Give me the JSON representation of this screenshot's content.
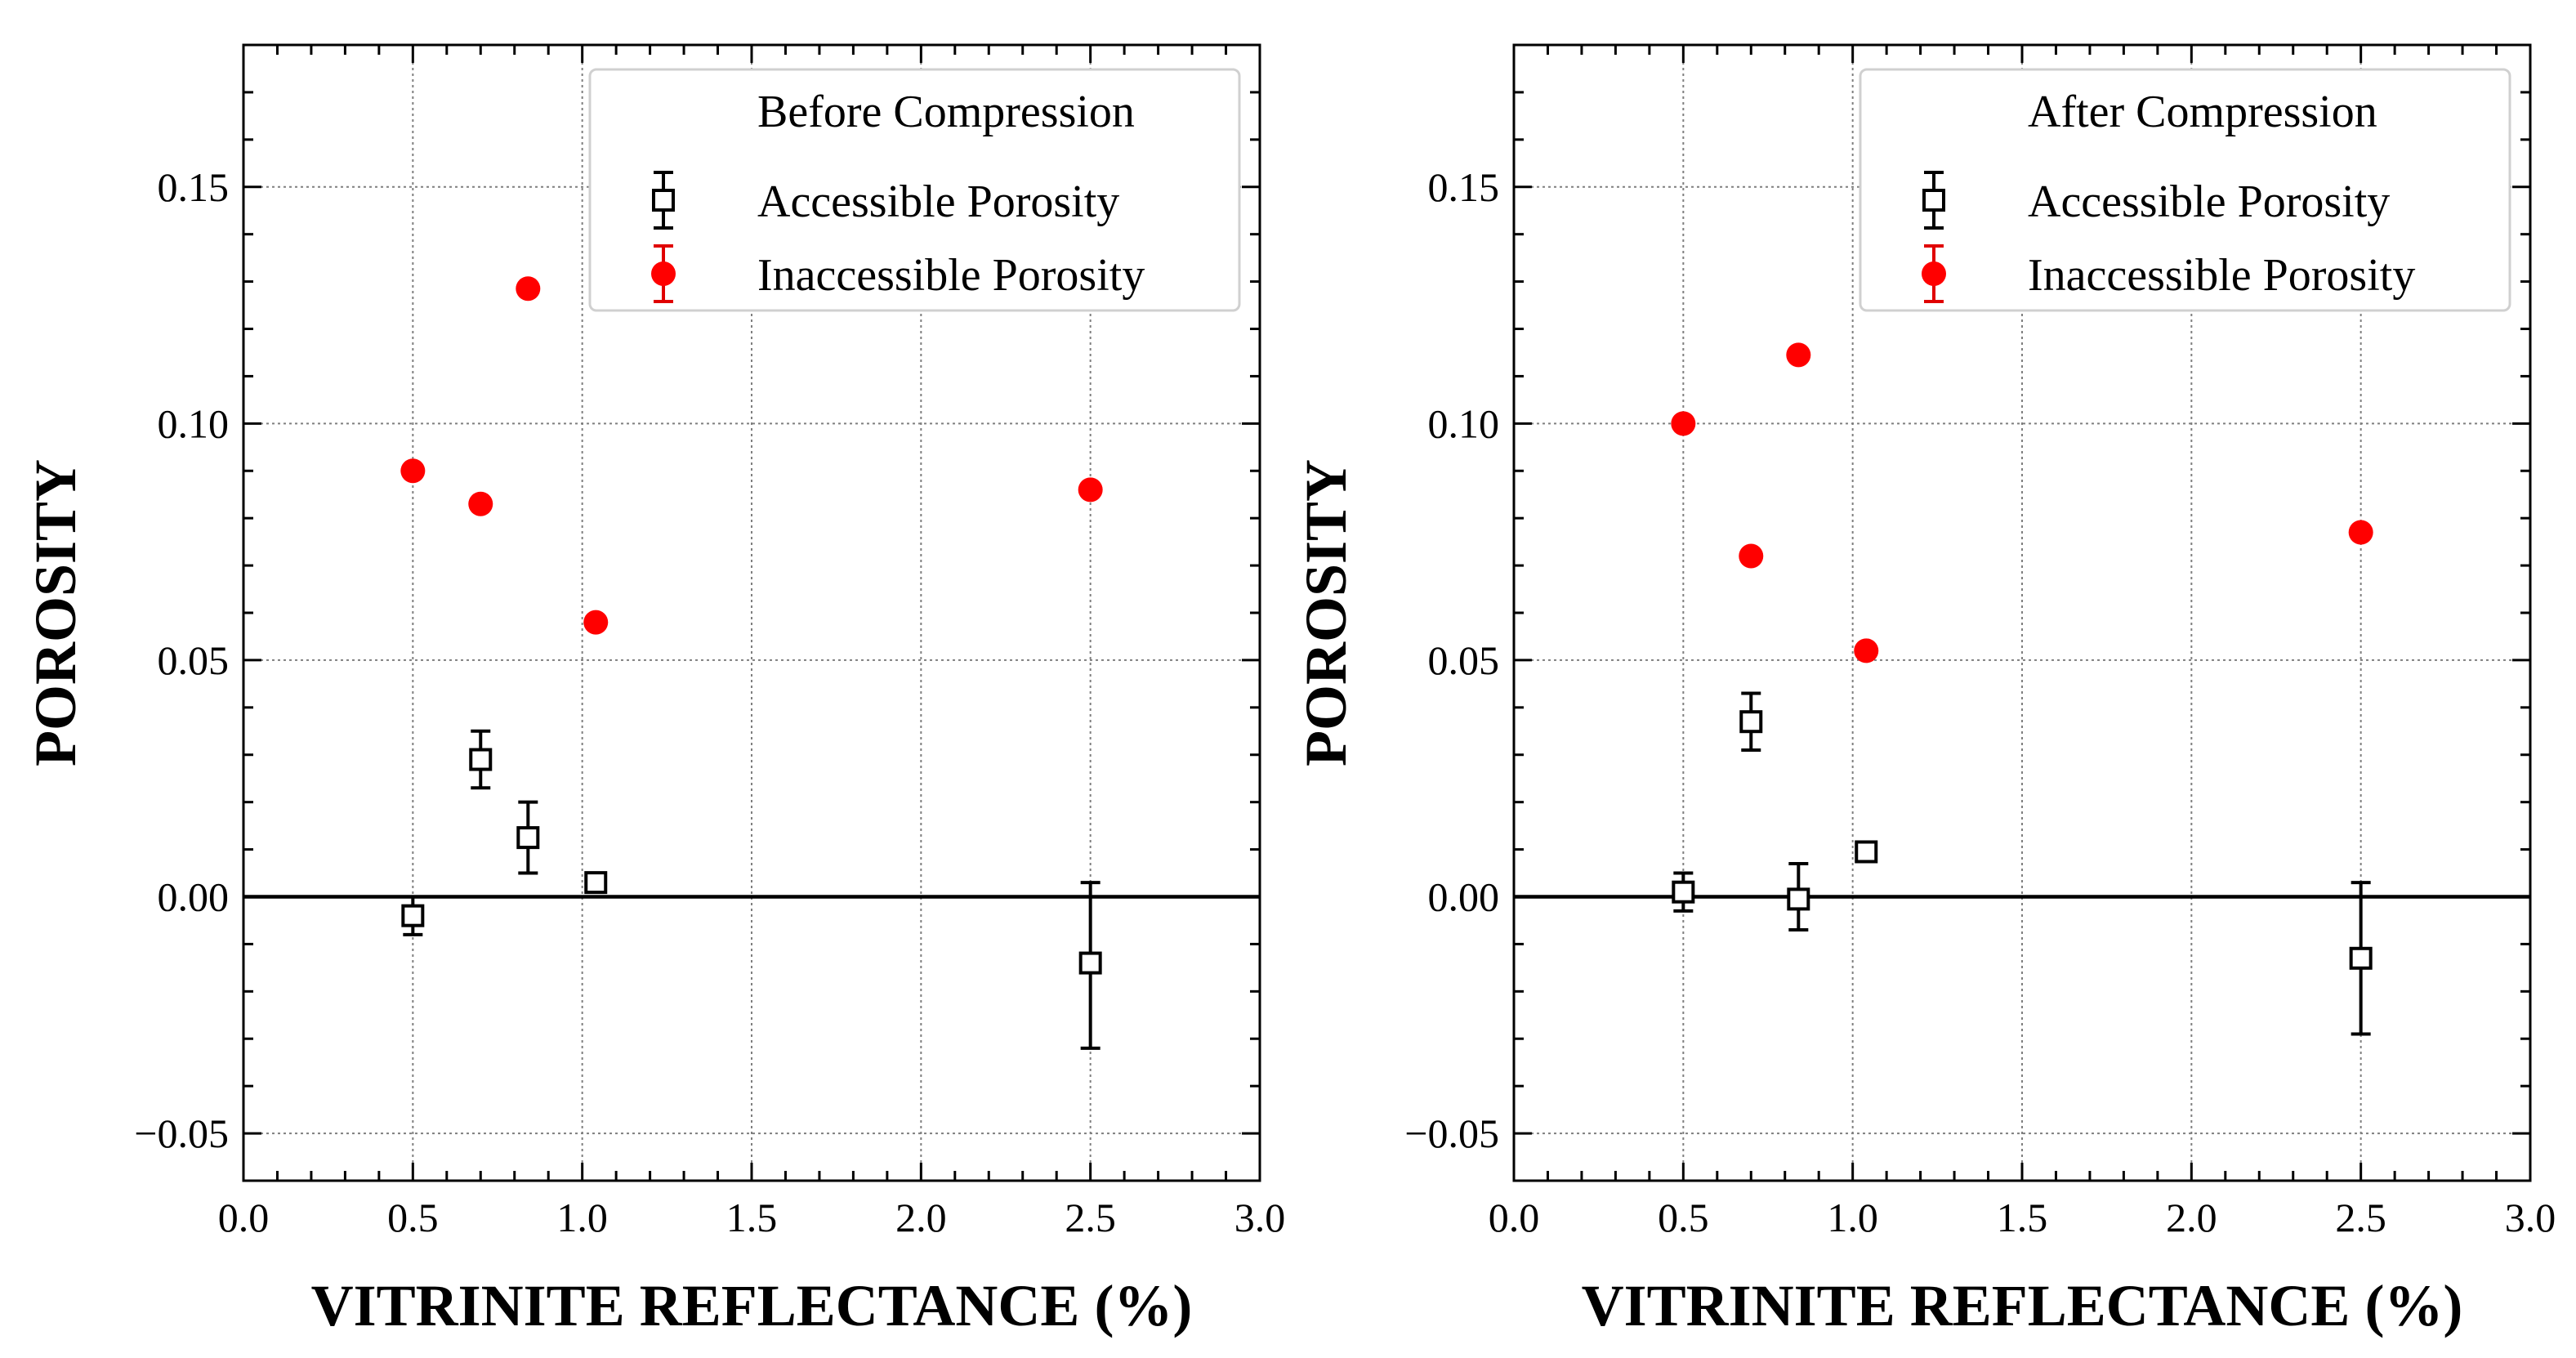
{
  "chart_data": [
    {
      "type": "scatter",
      "legend_title": "Before Compression",
      "legend_position": "top-right",
      "xlabel": "VITRINITE REFLECTANCE (%)",
      "ylabel": "POROSITY",
      "xlim": [
        0.0,
        3.0
      ],
      "ylim": [
        -0.06,
        0.18
      ],
      "xticks": [
        "0.0",
        "0.5",
        "1.0",
        "1.5",
        "2.0",
        "2.5",
        "3.0"
      ],
      "yticks": [
        "−0.05",
        "0.00",
        "0.05",
        "0.10",
        "0.15"
      ],
      "grid": true,
      "series": [
        {
          "name": "Accessible Porosity",
          "marker": "open-square",
          "color": "#000000",
          "x": [
            0.5,
            0.7,
            0.84,
            1.04,
            2.5
          ],
          "y": [
            -0.004,
            0.029,
            0.0125,
            0.003,
            -0.014
          ],
          "err_lo": [
            -0.008,
            0.023,
            0.005,
            0.001,
            -0.032
          ],
          "err_hi": [
            0.0,
            0.035,
            0.02,
            0.005,
            0.003
          ]
        },
        {
          "name": "Inaccessible Porosity",
          "marker": "filled-circle",
          "color": "#ff0000",
          "x": [
            0.5,
            0.7,
            0.84,
            1.04,
            2.5
          ],
          "y": [
            0.09,
            0.083,
            0.1285,
            0.058,
            0.086
          ]
        }
      ]
    },
    {
      "type": "scatter",
      "legend_title": "After Compression",
      "legend_position": "top-right",
      "xlabel": "VITRINITE REFLECTANCE (%)",
      "ylabel": "POROSITY",
      "xlim": [
        0.0,
        3.0
      ],
      "ylim": [
        -0.06,
        0.18
      ],
      "xticks": [
        "0.0",
        "0.5",
        "1.0",
        "1.5",
        "2.0",
        "2.5",
        "3.0"
      ],
      "yticks": [
        "−0.05",
        "0.00",
        "0.05",
        "0.10",
        "0.15"
      ],
      "grid": true,
      "series": [
        {
          "name": "Accessible Porosity",
          "marker": "open-square",
          "color": "#000000",
          "x": [
            0.5,
            0.7,
            0.84,
            1.04,
            2.5
          ],
          "y": [
            0.001,
            0.037,
            -0.0005,
            0.0095,
            -0.013
          ],
          "err_lo": [
            -0.003,
            0.031,
            -0.007,
            0.008,
            -0.029
          ],
          "err_hi": [
            0.005,
            0.043,
            0.007,
            0.011,
            0.003
          ]
        },
        {
          "name": "Inaccessible Porosity",
          "marker": "filled-circle",
          "color": "#ff0000",
          "x": [
            0.5,
            0.7,
            0.84,
            1.04,
            2.5
          ],
          "y": [
            0.1,
            0.072,
            0.1145,
            0.052,
            0.077
          ]
        }
      ]
    }
  ]
}
